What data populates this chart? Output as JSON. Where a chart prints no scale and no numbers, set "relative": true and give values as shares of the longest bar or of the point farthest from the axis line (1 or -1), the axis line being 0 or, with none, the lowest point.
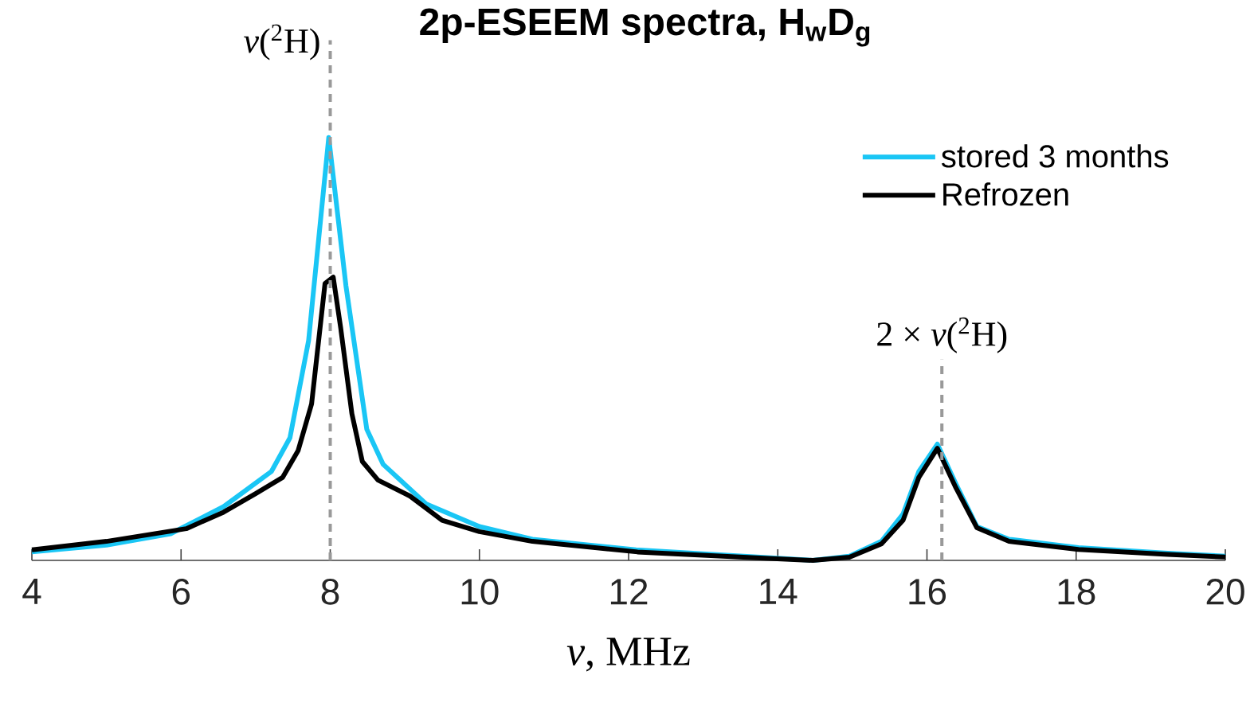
{
  "chart_data": {
    "type": "line",
    "title": "2p-ESEEM spectra, H$_{w}$D$_{g}$",
    "xlabel": "*ν*, MHz",
    "relative": true,
    "xlim": [
      4,
      20
    ],
    "xticks": [
      4,
      6,
      8,
      10,
      12,
      14,
      16,
      18,
      20
    ],
    "legend": "top right",
    "marker": "none",
    "line_style": "solid",
    "grid": false,
    "series": [
      {
        "name": "stored 3 months",
        "color": "#1ac6f5",
        "x": [
          4,
          5,
          5.86,
          6.57,
          7.21,
          7.46,
          7.71,
          7.98,
          8.21,
          8.49,
          8.71,
          9.29,
          10,
          10.71,
          12.1,
          13.54,
          14.47,
          14.96,
          15.39,
          15.68,
          15.89,
          16.14,
          16.39,
          16.67,
          17.1,
          18.03,
          19.23,
          20
        ],
        "values": [
          0.02,
          0.036,
          0.063,
          0.127,
          0.21,
          0.29,
          0.52,
          1.0,
          0.65,
          0.31,
          0.227,
          0.133,
          0.08,
          0.05,
          0.025,
          0.01,
          0,
          0.01,
          0.045,
          0.11,
          0.21,
          0.275,
          0.18,
          0.08,
          0.05,
          0.03,
          0.017,
          0.01
        ]
      },
      {
        "name": "Refrozen",
        "color": "#000000",
        "x": [
          4,
          5,
          6.07,
          6.57,
          7,
          7.36,
          7.57,
          7.75,
          7.93,
          8.04,
          8.14,
          8.29,
          8.43,
          8.64,
          9.07,
          9.5,
          10,
          10.71,
          12.12,
          13.54,
          14.47,
          14.96,
          15.39,
          15.68,
          15.89,
          16.14,
          16.39,
          16.67,
          17.1,
          18.03,
          19.23,
          20
        ],
        "values": [
          0.025,
          0.045,
          0.075,
          0.114,
          0.158,
          0.196,
          0.26,
          0.37,
          0.655,
          0.67,
          0.55,
          0.347,
          0.234,
          0.19,
          0.152,
          0.095,
          0.068,
          0.045,
          0.02,
          0.0075,
          0,
          0.0075,
          0.039,
          0.095,
          0.196,
          0.265,
          0.171,
          0.077,
          0.045,
          0.026,
          0.014,
          0.008
        ]
      }
    ],
    "ref_lines": [
      {
        "axis": "x",
        "value": 8,
        "label": "*ν*($^{2}$H)",
        "color": "#999999",
        "line_style": "dashed"
      },
      {
        "axis": "x",
        "value": 16.2,
        "label": "2 × *ν*($^{2}$H)",
        "color": "#999999",
        "line_style": "dashed"
      }
    ]
  }
}
